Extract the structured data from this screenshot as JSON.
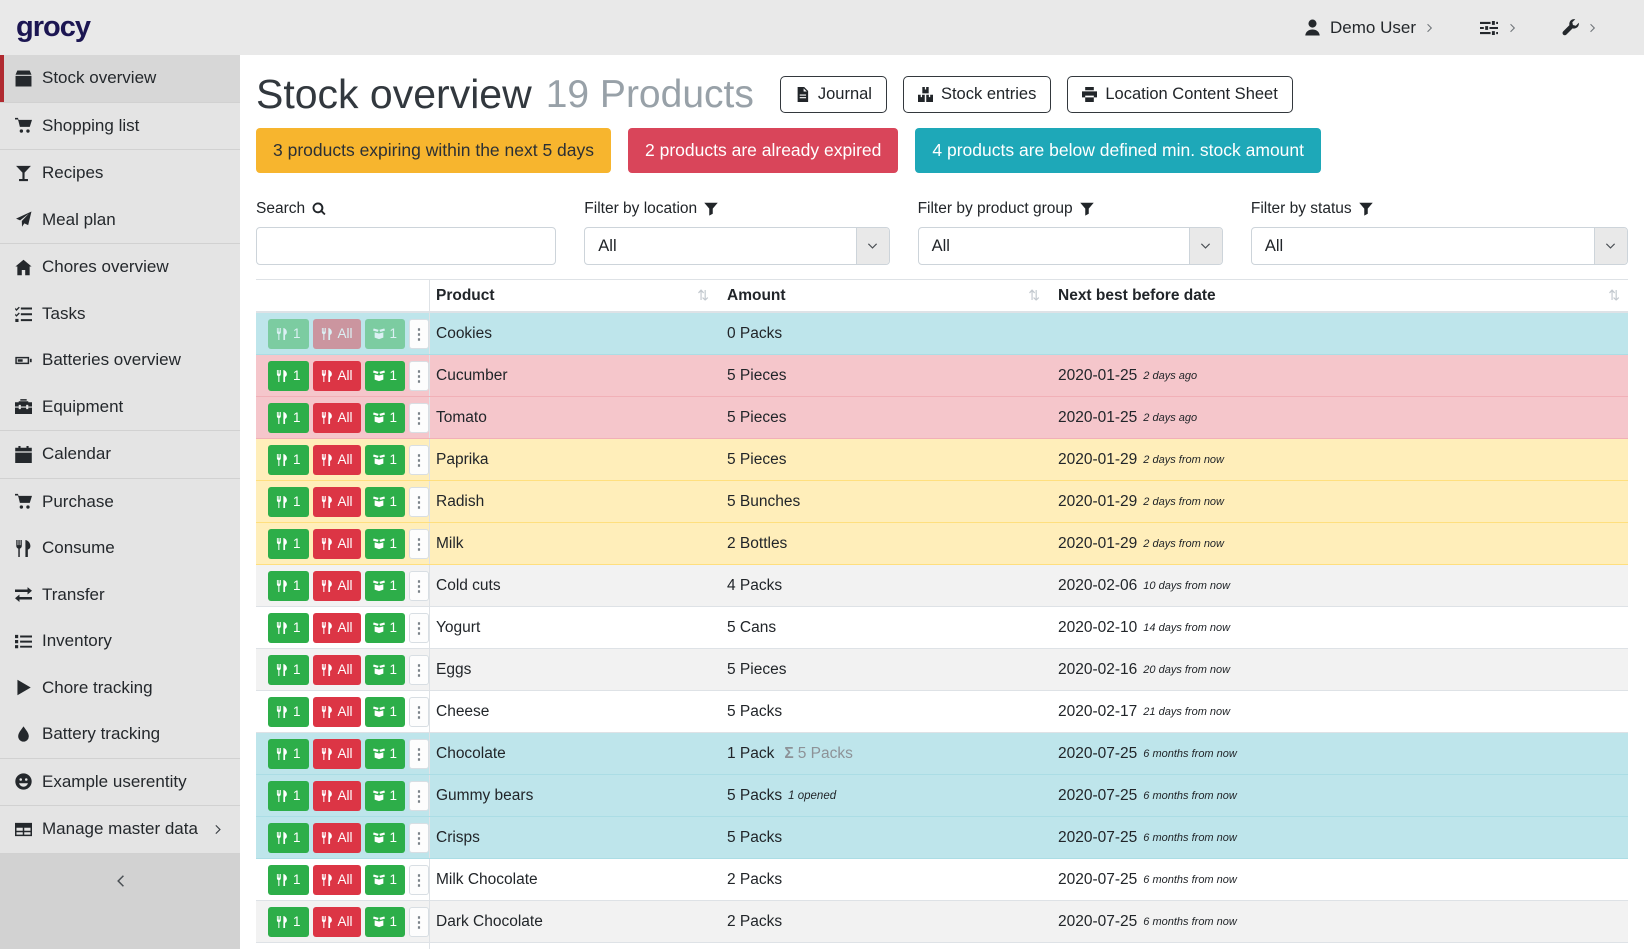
{
  "navbar": {
    "logo": "grocy",
    "user_label": "Demo User"
  },
  "sidebar": {
    "items": [
      {
        "label": "Stock overview",
        "icon": "box",
        "active": true,
        "divider_after": true
      },
      {
        "label": "Shopping list",
        "icon": "cart",
        "divider_after": true
      },
      {
        "label": "Recipes",
        "icon": "martini"
      },
      {
        "label": "Meal plan",
        "icon": "paper-plane",
        "divider_after": true
      },
      {
        "label": "Chores overview",
        "icon": "home"
      },
      {
        "label": "Tasks",
        "icon": "tasks"
      },
      {
        "label": "Batteries overview",
        "icon": "battery"
      },
      {
        "label": "Equipment",
        "icon": "toolbox",
        "divider_after": true
      },
      {
        "label": "Calendar",
        "icon": "calendar",
        "divider_after": true
      },
      {
        "label": "Purchase",
        "icon": "cart"
      },
      {
        "label": "Consume",
        "icon": "utensils"
      },
      {
        "label": "Transfer",
        "icon": "exchange"
      },
      {
        "label": "Inventory",
        "icon": "list"
      },
      {
        "label": "Chore tracking",
        "icon": "play"
      },
      {
        "label": "Battery tracking",
        "icon": "droplet",
        "divider_after": true
      },
      {
        "label": "Example userentity",
        "icon": "smiley",
        "divider_after": true
      },
      {
        "label": "Manage master data",
        "icon": "table",
        "chevron": true,
        "divider_after": true
      }
    ]
  },
  "header": {
    "title": "Stock overview",
    "subtitle": "19 Products",
    "buttons": [
      {
        "label": "Journal",
        "icon": "file"
      },
      {
        "label": "Stock entries",
        "icon": "boxes"
      },
      {
        "label": "Location Content Sheet",
        "icon": "print"
      }
    ]
  },
  "alerts": [
    {
      "text": "3 products expiring within the next 5 days",
      "type": "warning"
    },
    {
      "text": "2 products are already expired",
      "type": "danger"
    },
    {
      "text": "4 products are below defined min. stock amount",
      "type": "info"
    }
  ],
  "filters": {
    "search_label": "Search",
    "location_label": "Filter by location",
    "product_group_label": "Filter by product group",
    "status_label": "Filter by status",
    "search_value": "",
    "location_value": "All",
    "product_group_value": "All",
    "status_value": "All"
  },
  "table": {
    "columns": [
      "Product",
      "Amount",
      "Next best before date"
    ],
    "row_buttons": {
      "consume_one": "1",
      "consume_all": "All",
      "open_one": "1"
    },
    "rows": [
      {
        "product": "Cookies",
        "amount": "0 Packs",
        "date": "",
        "date_rel": "",
        "status": "info",
        "buttons_disabled": true
      },
      {
        "product": "Cucumber",
        "amount": "5 Pieces",
        "date": "2020-01-25",
        "date_rel": "2 days ago",
        "status": "danger"
      },
      {
        "product": "Tomato",
        "amount": "5 Pieces",
        "date": "2020-01-25",
        "date_rel": "2 days ago",
        "status": "danger"
      },
      {
        "product": "Paprika",
        "amount": "5 Pieces",
        "date": "2020-01-29",
        "date_rel": "2 days from now",
        "status": "warning"
      },
      {
        "product": "Radish",
        "amount": "5 Bunches",
        "date": "2020-01-29",
        "date_rel": "2 days from now",
        "status": "warning"
      },
      {
        "product": "Milk",
        "amount": "2 Bottles",
        "date": "2020-01-29",
        "date_rel": "2 days from now",
        "status": "warning"
      },
      {
        "product": "Cold cuts",
        "amount": "4 Packs",
        "date": "2020-02-06",
        "date_rel": "10 days from now",
        "status": ""
      },
      {
        "product": "Yogurt",
        "amount": "5 Cans",
        "date": "2020-02-10",
        "date_rel": "14 days from now",
        "status": ""
      },
      {
        "product": "Eggs",
        "amount": "5 Pieces",
        "date": "2020-02-16",
        "date_rel": "20 days from now",
        "status": ""
      },
      {
        "product": "Cheese",
        "amount": "5 Packs",
        "date": "2020-02-17",
        "date_rel": "21 days from now",
        "status": ""
      },
      {
        "product": "Chocolate",
        "amount": "1 Pack",
        "amount_sum": "5 Packs",
        "date": "2020-07-25",
        "date_rel": "6 months from now",
        "status": "info"
      },
      {
        "product": "Gummy bears",
        "amount": "5 Packs",
        "amount_note": "1 opened",
        "date": "2020-07-25",
        "date_rel": "6 months from now",
        "status": "info"
      },
      {
        "product": "Crisps",
        "amount": "5 Packs",
        "date": "2020-07-25",
        "date_rel": "6 months from now",
        "status": "info"
      },
      {
        "product": "Milk Chocolate",
        "amount": "2 Packs",
        "date": "2020-07-25",
        "date_rel": "6 months from now",
        "status": ""
      },
      {
        "product": "Dark Chocolate",
        "amount": "2 Packs",
        "date": "2020-07-25",
        "date_rel": "6 months from now",
        "status": ""
      },
      {
        "product": "",
        "amount": "",
        "date": "",
        "date_rel": "",
        "status": ""
      }
    ]
  },
  "colors": {
    "brand": "#1c1652",
    "accent_red": "#b02a30",
    "alert_warning": "#f7b52e",
    "alert_danger": "#d9455a",
    "alert_info": "#1ea8b8",
    "row_info": "#bee5eb",
    "row_danger": "#f5c6cb",
    "row_warning": "#ffeeba",
    "btn_green": "#2dae49",
    "btn_red": "#dc3545"
  }
}
